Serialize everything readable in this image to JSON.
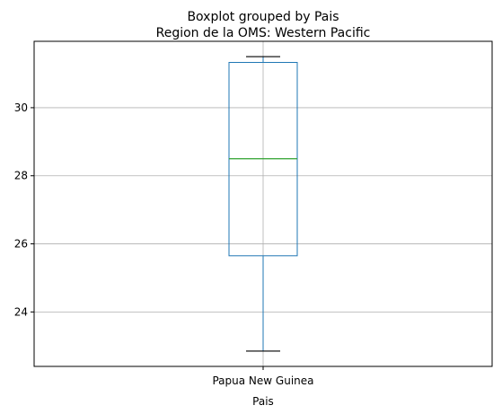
{
  "chart_data": {
    "type": "box",
    "suptitle": "Boxplot grouped by Pais",
    "title": "Region de la OMS: Western Pacific",
    "xlabel": "Pais",
    "ylabel": "",
    "categories": [
      "Papua New Guinea"
    ],
    "boxes": [
      {
        "category": "Papua New Guinea",
        "whisker_low": 22.85,
        "q1": 25.65,
        "median": 28.5,
        "q3": 31.33,
        "whisker_high": 31.5
      }
    ],
    "ylim": [
      22.4,
      31.95
    ],
    "yticks": [
      24,
      26,
      28,
      30
    ],
    "grid": true,
    "colors": {
      "box": "#1f77b4",
      "median": "#2ca02c",
      "caps": "#000000",
      "grid": "#b0b0b0",
      "frame": "#000000"
    }
  }
}
